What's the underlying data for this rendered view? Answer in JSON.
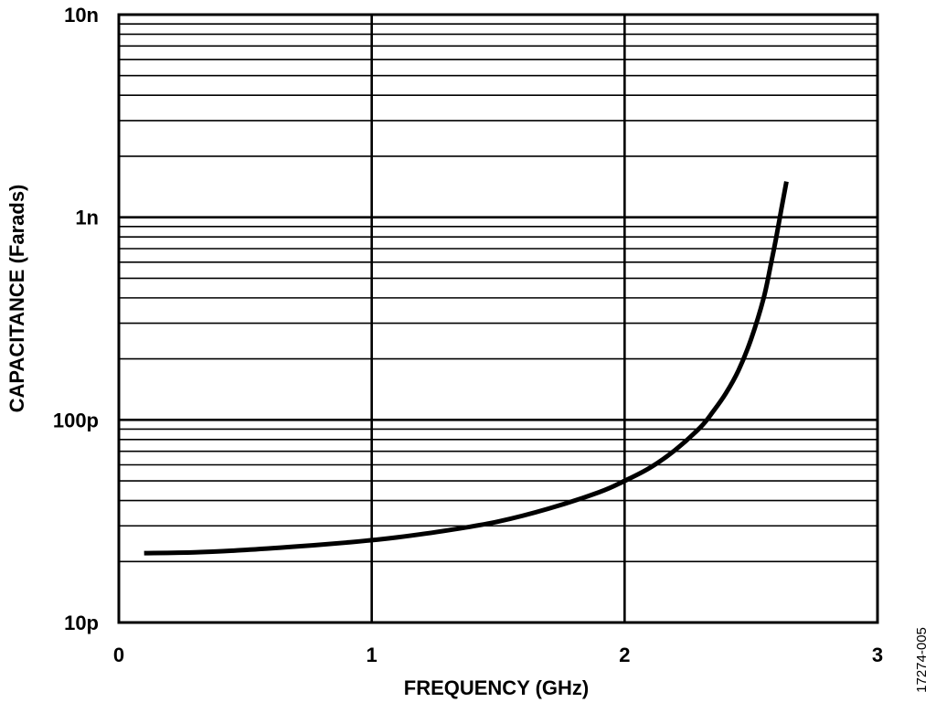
{
  "chart_data": {
    "type": "line",
    "title": "",
    "xlabel": "FREQUENCY (GHz)",
    "ylabel": "CAPACITANCE (Farads)",
    "xlim": [
      0,
      3
    ],
    "ylim": [
      1e-11,
      1e-08
    ],
    "y_scale": "log",
    "grid": true,
    "x_ticks": [
      {
        "value": 0,
        "label": "0"
      },
      {
        "value": 1,
        "label": "1"
      },
      {
        "value": 2,
        "label": "2"
      },
      {
        "value": 3,
        "label": "3"
      }
    ],
    "y_ticks": [
      {
        "value": 1e-11,
        "label": "10p"
      },
      {
        "value": 1e-10,
        "label": "100p"
      },
      {
        "value": 1e-09,
        "label": "1n"
      },
      {
        "value": 1e-08,
        "label": "10n"
      }
    ],
    "series": [
      {
        "color": "#000000",
        "x": [
          0.1,
          0.3,
          0.5,
          0.7,
          0.9,
          1.0,
          1.1,
          1.3,
          1.5,
          1.7,
          1.9,
          2.0,
          2.1,
          2.2,
          2.3,
          2.35,
          2.4,
          2.45,
          2.5,
          2.55,
          2.58,
          2.6,
          2.62,
          2.64
        ],
        "y": [
          2.2e-11,
          2.22e-11,
          2.28e-11,
          2.37e-11,
          2.48e-11,
          2.55e-11,
          2.63e-11,
          2.85e-11,
          3.15e-11,
          3.65e-11,
          4.4e-11,
          5e-11,
          5.8e-11,
          7.1e-11,
          9.2e-11,
          1.1e-10,
          1.35e-10,
          1.75e-10,
          2.5e-10,
          4e-10,
          6e-10,
          8e-10,
          1.1e-09,
          1.5e-09
        ]
      }
    ],
    "figure_id": "17274-005"
  }
}
